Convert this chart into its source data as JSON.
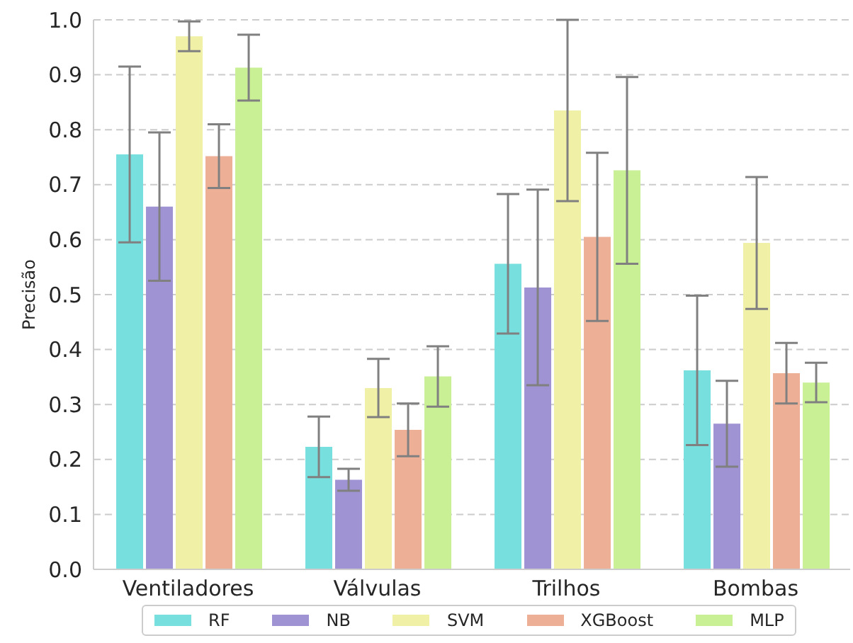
{
  "chart_data": {
    "type": "bar",
    "ylabel": "Precisão",
    "categories": [
      "Ventiladores",
      "Válvulas",
      "Trilhos",
      "Bombas"
    ],
    "series": [
      {
        "name": "RF",
        "color": "#78dfdf",
        "values": [
          0.755,
          0.223,
          0.556,
          0.362
        ],
        "errors": [
          0.16,
          0.055,
          0.127,
          0.136
        ]
      },
      {
        "name": "NB",
        "color": "#9f93d3",
        "values": [
          0.66,
          0.163,
          0.513,
          0.265
        ],
        "errors": [
          0.135,
          0.02,
          0.178,
          0.078
        ]
      },
      {
        "name": "SVM",
        "color": "#f0f0a6",
        "values": [
          0.97,
          0.33,
          0.835,
          0.594
        ],
        "errors": [
          0.027,
          0.053,
          0.165,
          0.12
        ]
      },
      {
        "name": "XGBoost",
        "color": "#eeaf97",
        "values": [
          0.752,
          0.254,
          0.605,
          0.357
        ],
        "errors": [
          0.058,
          0.048,
          0.153,
          0.055
        ]
      },
      {
        "name": "MLP",
        "color": "#caf095",
        "values": [
          0.913,
          0.351,
          0.726,
          0.34
        ],
        "errors": [
          0.06,
          0.055,
          0.17,
          0.036
        ]
      }
    ],
    "ylim": [
      0,
      1
    ],
    "yticks": [
      {
        "value": 0,
        "label": "0.0"
      },
      0.1,
      0.2,
      0.3,
      0.4,
      0.5,
      0.6,
      0.7,
      0.8,
      0.9,
      {
        "value": 1,
        "label": "1.0"
      }
    ],
    "grid": "y",
    "legend": "bottom"
  }
}
